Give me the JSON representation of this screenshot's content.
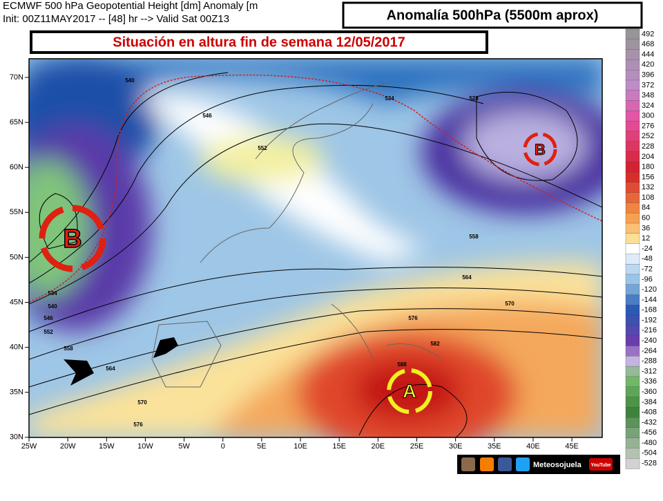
{
  "header": {
    "line1": "ECMWF 500 hPa Geopotential Height [dm] Anomaly [m",
    "line2": "Init: 00Z11MAY2017 -- [48] hr --> Valid Sat 00Z13"
  },
  "title_box": "Anomalía 500hPa (5500m aprox)",
  "subtitle_box": "Situación en altura fin de semana 12/05/2017",
  "map": {
    "lat_labels": [
      "70N",
      "65N",
      "60N",
      "55N",
      "50N",
      "45N",
      "40N",
      "35N",
      "30N"
    ],
    "lon_labels": [
      "25W",
      "20W",
      "15W",
      "10W",
      "5W",
      "0",
      "5E",
      "10E",
      "15E",
      "20E",
      "25E",
      "30E",
      "35E",
      "40E",
      "45E"
    ],
    "contour_labels": [
      "540",
      "546",
      "552",
      "534",
      "528",
      "558",
      "564",
      "570",
      "576",
      "582",
      "588",
      "534",
      "540",
      "546",
      "552",
      "558",
      "564",
      "570",
      "576"
    ],
    "markers": [
      "B",
      "B",
      "A"
    ]
  },
  "colorbar": {
    "labels": [
      "492",
      "468",
      "444",
      "420",
      "396",
      "372",
      "348",
      "324",
      "300",
      "276",
      "252",
      "228",
      "204",
      "180",
      "156",
      "132",
      "108",
      "84",
      "60",
      "36",
      "12",
      "-24",
      "-48",
      "-72",
      "-96",
      "-120",
      "-144",
      "-168",
      "-192",
      "-216",
      "-240",
      "-264",
      "-288",
      "-312",
      "-336",
      "-360",
      "-384",
      "-408",
      "-432",
      "-456",
      "-480",
      "-504",
      "-528"
    ]
  },
  "footer": {
    "brand": "Meteosojuela",
    "youtube": "YouTube"
  }
}
